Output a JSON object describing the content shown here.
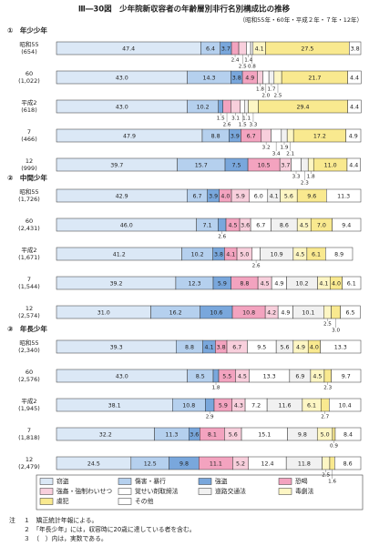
{
  "title": "Ⅲ―30図　少年院新収容者の年齢層別非行名別構成比の推移",
  "subtitle": "（昭和55年・60年・平成２年・７年・12年）",
  "notes_label": "注",
  "notes": [
    "１　矯正統計年報による。",
    "２　「年長少年」には，収容時に20歳に達している者を含む。",
    "３　（　）内は，実数である。"
  ],
  "chart_data": [
    {
      "type": "bar",
      "orientation": "horizontal",
      "stacked": true,
      "title": "①　年少少年",
      "xlim": [
        0,
        100
      ],
      "categories": [
        "昭和55",
        "60",
        "平成2",
        "7",
        "12"
      ],
      "counts": [
        "(654)",
        "(1,022)",
        "(618)",
        "(466)",
        "(999)"
      ],
      "series": [
        {
          "name": "窃盗",
          "color": "#dbe8f6",
          "values": [
            47.4,
            43.0,
            43.0,
            47.9,
            39.7
          ],
          "value_labels": [
            "47.4",
            "43.0",
            "43.0",
            "47.9",
            "39.7"
          ]
        },
        {
          "name": "傷害・暴行",
          "color": "#b5d0ee",
          "values": [
            6.4,
            14.3,
            10.2,
            8.8,
            15.7
          ],
          "value_labels": [
            "6.4",
            "14.3",
            "10.2",
            "8.8",
            "15.7"
          ]
        },
        {
          "name": "強盗",
          "color": "#79a7dc",
          "values": [
            3.7,
            3.8,
            1.5,
            3.9,
            7.5
          ],
          "value_labels": [
            "3.7",
            "3.8",
            "1.5",
            "3.9",
            "7.5"
          ]
        },
        {
          "name": "恐喝",
          "color": "#f3a3bf",
          "values": [
            2.4,
            4.9,
            2.6,
            6.7,
            10.5
          ],
          "value_labels": [
            "2.4",
            "4.9",
            "2.6",
            "6.7",
            "10.5"
          ]
        },
        {
          "name": "強姦・強制わいせつ",
          "color": "#f8cfdc",
          "values": [
            2.5,
            1.8,
            3.1,
            3.2,
            3.7
          ],
          "value_labels": [
            "2.5",
            "1.8",
            "3.1",
            "3.2",
            "3.7"
          ]
        },
        {
          "name": "覚せい剤取締法",
          "color": "#ffffff",
          "values": [
            1.4,
            2.0,
            1.5,
            3.4,
            3.3
          ],
          "value_labels": [
            "1.4",
            "2.0",
            "1.5",
            "3.4",
            "3.3"
          ]
        },
        {
          "name": "道路交通法",
          "color": "#f1f1f1",
          "values": [
            0.8,
            1.7,
            1.1,
            1.9,
            2.3
          ],
          "value_labels": [
            "0.8",
            "1.7",
            "1.1",
            "1.9",
            "2.3"
          ]
        },
        {
          "name": "毒劇法",
          "color": "#fdf6c4",
          "values": [
            4.1,
            2.5,
            3.3,
            2.1,
            1.8
          ],
          "value_labels": [
            "4.1",
            "2.5",
            "3.3",
            "2.1",
            "1.8"
          ]
        },
        {
          "name": "虞犯",
          "color": "#f9e98f",
          "values": [
            27.5,
            21.7,
            29.4,
            17.2,
            11.0
          ],
          "value_labels": [
            "27.5",
            "21.7",
            "29.4",
            "17.2",
            "11.0"
          ]
        },
        {
          "name": "その他",
          "color": "#ffffff",
          "values": [
            3.8,
            4.4,
            4.4,
            4.9,
            4.4
          ],
          "value_labels": [
            "3.8",
            "4.4",
            "4.4",
            "4.9",
            "4.4"
          ]
        }
      ]
    },
    {
      "type": "bar",
      "orientation": "horizontal",
      "stacked": true,
      "title": "②　中間少年",
      "xlim": [
        0,
        100
      ],
      "categories": [
        "昭和55",
        "60",
        "平成2",
        "7",
        "12"
      ],
      "counts": [
        "(1,726)",
        "(2,431)",
        "(1,671)",
        "(1,544)",
        "(2,574)"
      ],
      "series": [
        {
          "values": [
            42.9,
            46.0,
            41.2,
            39.2,
            31.0
          ],
          "value_labels": [
            "42.9",
            "46.0",
            "41.2",
            "39.2",
            "31.0"
          ]
        },
        {
          "values": [
            6.7,
            7.1,
            10.2,
            12.3,
            16.2
          ],
          "value_labels": [
            "6.7",
            "7.1",
            "10.2",
            "12.3",
            "16.2"
          ]
        },
        {
          "values": [
            3.9,
            2.6,
            3.8,
            5.9,
            10.6
          ],
          "value_labels": [
            "3.9",
            "2.6",
            "3.8",
            "5.9",
            "10.6"
          ]
        },
        {
          "values": [
            4.0,
            4.5,
            4.1,
            8.8,
            10.8
          ],
          "value_labels": [
            "4.0",
            "4.5",
            "4.1",
            "8.8",
            "10.8"
          ]
        },
        {
          "values": [
            5.9,
            3.6,
            5.0,
            4.5,
            4.2
          ],
          "value_labels": [
            "5.9",
            "3.6",
            "5.0",
            "4.5",
            "4.2"
          ]
        },
        {
          "values": [
            6.0,
            6.7,
            2.6,
            4.9,
            4.9
          ],
          "value_labels": [
            "6.0",
            "6.7",
            "2.6",
            "4.9",
            "4.9"
          ]
        },
        {
          "values": [
            4.1,
            8.6,
            10.9,
            10.2,
            10.1
          ],
          "value_labels": [
            "4.1",
            "8.6",
            "10.9",
            "10.2",
            "10.1"
          ]
        },
        {
          "values": [
            5.6,
            4.5,
            4.5,
            4.1,
            2.5
          ],
          "value_labels": [
            "5.6",
            "4.5",
            "4.5",
            "4.1",
            "2.5"
          ]
        },
        {
          "values": [
            9.6,
            7.0,
            6.1,
            4.0,
            3.0
          ],
          "value_labels": [
            "9.6",
            "7.0",
            "6.1",
            "4.0",
            "3.0"
          ]
        },
        {
          "values": [
            11.3,
            9.4,
            8.9,
            6.1,
            6.5
          ],
          "value_labels": [
            "11.3",
            "9.4",
            "8.9",
            "6.1",
            "6.5"
          ]
        }
      ]
    },
    {
      "type": "bar",
      "orientation": "horizontal",
      "stacked": true,
      "title": "③　年長少年",
      "xlim": [
        0,
        100
      ],
      "categories": [
        "昭和55",
        "60",
        "平成2",
        "7",
        "12"
      ],
      "counts": [
        "(2,340)",
        "(2,576)",
        "(1,945)",
        "(1,818)",
        "(2,479)"
      ],
      "series": [
        {
          "values": [
            39.3,
            43.0,
            38.1,
            32.2,
            24.5
          ],
          "value_labels": [
            "39.3",
            "43.0",
            "38.1",
            "32.2",
            "24.5"
          ]
        },
        {
          "values": [
            8.8,
            8.5,
            10.8,
            11.3,
            12.5
          ],
          "value_labels": [
            "8.8",
            "8.5",
            "10.8",
            "11.3",
            "12.5"
          ]
        },
        {
          "values": [
            4.1,
            1.8,
            2.9,
            3.6,
            9.8
          ],
          "value_labels": [
            "4.1",
            "1.8",
            "2.9",
            "3.6",
            "9.8"
          ]
        },
        {
          "values": [
            3.8,
            5.5,
            5.9,
            8.1,
            11.1
          ],
          "value_labels": [
            "3.8",
            "5.5",
            "5.9",
            "8.1",
            "11.1"
          ]
        },
        {
          "values": [
            6.7,
            4.5,
            4.3,
            5.6,
            5.2
          ],
          "value_labels": [
            "6.7",
            "4.5",
            "4.3",
            "5.6",
            "5.2"
          ]
        },
        {
          "values": [
            9.5,
            13.3,
            7.2,
            15.1,
            12.4
          ],
          "value_labels": [
            "9.5",
            "13.3",
            "7.2",
            "15.1",
            "12.4"
          ]
        },
        {
          "values": [
            5.6,
            6.9,
            11.6,
            9.8,
            11.8
          ],
          "value_labels": [
            "5.6",
            "6.9",
            "11.6",
            "9.8",
            "11.8"
          ]
        },
        {
          "values": [
            4.9,
            4.5,
            6.1,
            5.0,
            2.5
          ],
          "value_labels": [
            "4.9",
            "4.5",
            "6.1",
            "5.0",
            "2.5"
          ]
        },
        {
          "values": [
            4.0,
            2.3,
            2.7,
            0.9,
            1.6
          ],
          "value_labels": [
            "4.0",
            "2.3",
            "2.7",
            "0.9",
            "1.6"
          ]
        },
        {
          "values": [
            13.3,
            9.7,
            10.4,
            8.4,
            8.6
          ],
          "value_labels": [
            "13.3",
            "9.7",
            "10.4",
            "8.4",
            "8.6"
          ]
        }
      ]
    }
  ]
}
